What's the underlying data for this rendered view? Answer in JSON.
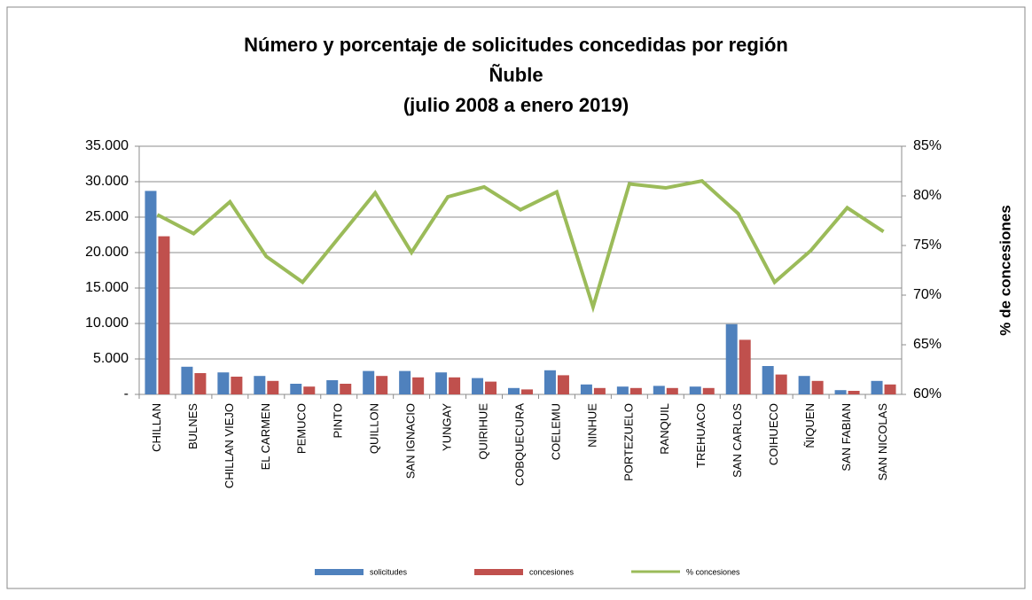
{
  "chart_data": {
    "type": "bar-line",
    "title": [
      "Número y porcentaje de solicitudes concedidas por región",
      "Ñuble",
      "(julio 2008 a enero 2019)"
    ],
    "y2_label": "% de concesiones",
    "categories": [
      "CHILLAN",
      "BULNES",
      "CHILLAN VIEJO",
      "EL CARMEN",
      "PEMUCO",
      "PINTO",
      "QUILLON",
      "SAN IGNACIO",
      "YUNGAY",
      "QUIRIHUE",
      "COBQUECURA",
      "COELEMU",
      "NINHUE",
      "PORTEZUELO",
      "RANQUIL",
      "TREHUACO",
      "SAN CARLOS",
      "COIHUECO",
      "ÑIQUEN",
      "SAN FABIAN",
      "SAN NICOLAS"
    ],
    "series": [
      {
        "name": "solicitudes",
        "color": "#4f81bd",
        "type": "bar",
        "axis": "y",
        "values": [
          28700,
          3900,
          3100,
          2600,
          1500,
          2000,
          3300,
          3300,
          3100,
          2300,
          900,
          3400,
          1400,
          1100,
          1200,
          1100,
          9900,
          4000,
          2600,
          600,
          1900
        ]
      },
      {
        "name": "concesiones",
        "color": "#c0504d",
        "type": "bar",
        "axis": "y",
        "values": [
          22300,
          3000,
          2500,
          1900,
          1100,
          1500,
          2600,
          2400,
          2400,
          1800,
          700,
          2700,
          900,
          900,
          900,
          900,
          7700,
          2800,
          1900,
          500,
          1400
        ]
      },
      {
        "name": "% concesiones",
        "color": "#9bbb59",
        "type": "line",
        "axis": "y2",
        "values": [
          78.1,
          76.2,
          79.4,
          73.9,
          71.3,
          75.8,
          80.3,
          74.3,
          79.9,
          80.9,
          78.6,
          80.4,
          68.8,
          81.2,
          80.8,
          81.5,
          78.2,
          71.3,
          74.5,
          78.8,
          76.4
        ]
      }
    ],
    "ylim": [
      0,
      35000
    ],
    "yticks": [
      {
        "value": 0,
        "label": "-"
      },
      {
        "value": 5000,
        "label": "5.000"
      },
      {
        "value": 10000,
        "label": "10.000"
      },
      {
        "value": 15000,
        "label": "15.000"
      },
      {
        "value": 20000,
        "label": "20.000"
      },
      {
        "value": 25000,
        "label": "25.000"
      },
      {
        "value": 30000,
        "label": "30.000"
      },
      {
        "value": 35000,
        "label": "35.000"
      }
    ],
    "y2lim": [
      60,
      85
    ],
    "y2ticks": [
      {
        "value": 60,
        "label": "60%"
      },
      {
        "value": 65,
        "label": "65%"
      },
      {
        "value": 70,
        "label": "70%"
      },
      {
        "value": 75,
        "label": "75%"
      },
      {
        "value": 80,
        "label": "80%"
      },
      {
        "value": 85,
        "label": "85%"
      }
    ],
    "grid": true,
    "legend": "bottom"
  }
}
